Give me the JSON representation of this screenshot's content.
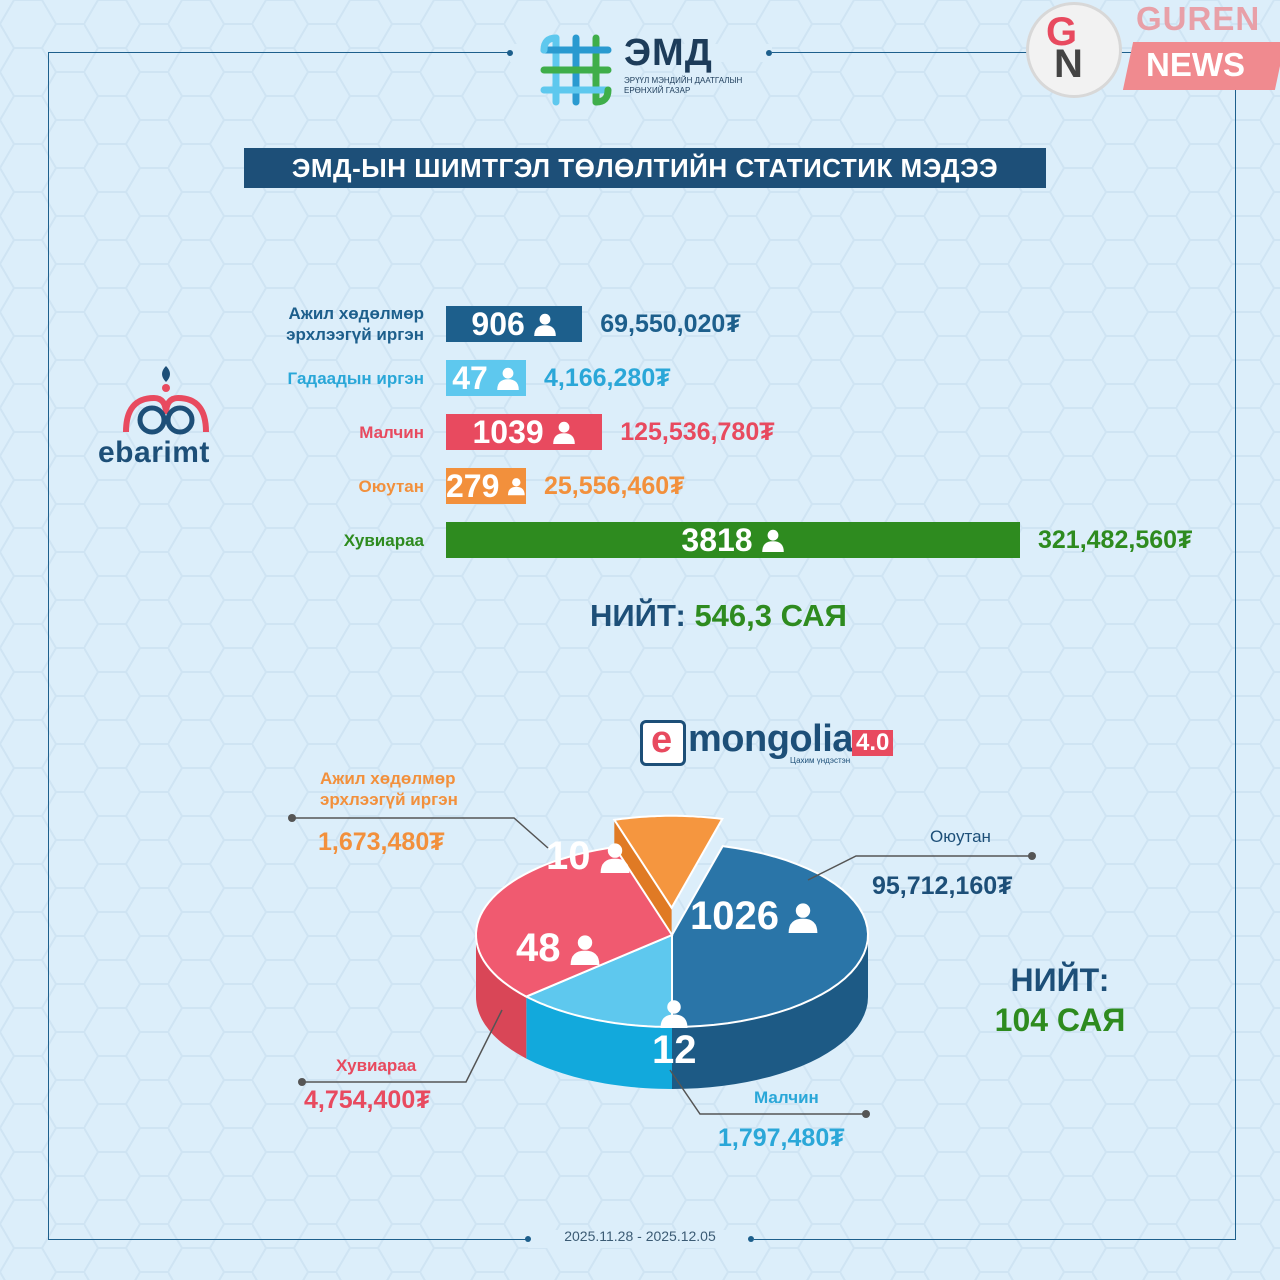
{
  "header": {
    "logo_word": "ЭМД",
    "logo_subtitle": "ЭРҮҮЛ МЭНДИЙН ДААТГАЛЫН ЕРӨНХИЙ ГАЗАР",
    "title": "ЭМД-ЫН ШИМТГЭЛ ТӨЛӨЛТИЙН СТАТИСТИК МЭДЭЭ"
  },
  "watermark": {
    "g": "G",
    "n": "N",
    "word1": "GUREN",
    "word2": "NEWS"
  },
  "colors": {
    "navy": "#1d4f78",
    "light_blue": "#5ec8ee",
    "red": "#e84a5f",
    "orange": "#f2903c",
    "green": "#2e8b1f"
  },
  "ebarimt_logo": "ebarimt",
  "chart_data": [
    {
      "type": "bar",
      "orientation": "horizontal",
      "categories": [
        "Ажил хөдөлмөр эрхлээгүй иргэн",
        "Гадаадын иргэн",
        "Малчин",
        "Оюутан",
        "Хувиараа"
      ],
      "category_lines": [
        [
          "Ажил хөдөлмөр",
          "эрхлээгүй иргэн"
        ],
        [
          "Гадаадын иргэн"
        ],
        [
          "Малчин"
        ],
        [
          "Оюутан"
        ],
        [
          "Хувиараа"
        ]
      ],
      "values": [
        906,
        47,
        1039,
        279,
        3818
      ],
      "amounts": [
        "69,550,020₮",
        "4,166,280₮",
        "125,536,780₮",
        "25,556,460₮",
        "321,482,560₮"
      ],
      "colors": [
        "#1d5f8c",
        "#5ec8ee",
        "#e84a5f",
        "#f2903c",
        "#2e8b1f"
      ],
      "icon": "person-icon",
      "total_label": "НИЙТ:",
      "total_value": "546,3 САЯ"
    },
    {
      "type": "pie",
      "style": "3d",
      "categories": [
        "Оюутан",
        "Малчин",
        "Хувиараа",
        "Ажил хөдөлмөр эрхлээгүй иргэн"
      ],
      "category_lines": [
        [
          "Оюутан"
        ],
        [
          "Малчин"
        ],
        [
          "Хувиараа"
        ],
        [
          "Ажил хөдөлмөр",
          "эрхлээгүй иргэн"
        ]
      ],
      "values": [
        1026,
        12,
        48,
        10
      ],
      "amounts": [
        "95,712,160₮",
        "1,797,480₮",
        "4,754,400₮",
        "1,673,480₮"
      ],
      "colors": [
        "#2a75a8",
        "#5ec8ee",
        "#f05a70",
        "#f5963f"
      ],
      "icon": "person-icon",
      "total_label": "НИЙТ:",
      "total_value": "104 САЯ"
    }
  ],
  "emongolia": {
    "e": "e",
    "word": "mongolia",
    "version": "4.0",
    "tagline": "Цахим үндэстэн"
  },
  "footer": {
    "date_range": "2025.11.28 - 2025.12.05"
  }
}
